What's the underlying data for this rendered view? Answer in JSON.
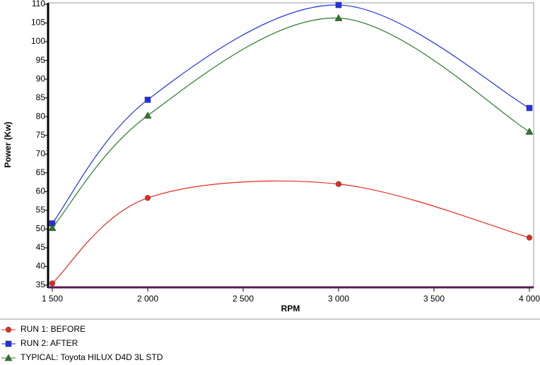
{
  "chart_data": {
    "type": "line",
    "x_label": "RPM",
    "y_label": "Power (Kw)",
    "x": [
      1500,
      2000,
      3000,
      4000
    ],
    "series": [
      {
        "name": "RUN 1: BEFORE",
        "color": "#e8291c",
        "marker": "circle",
        "values": [
          35.5,
          58.3,
          62,
          47.7
        ]
      },
      {
        "name": "RUN 2: AFTER",
        "color": "#1f2fe8",
        "marker": "square",
        "values": [
          51.5,
          84.5,
          109.8,
          82.3
        ]
      },
      {
        "name": "TYPICAL: Toyota HILUX D4D 3L STD",
        "color": "#2a7a2a",
        "marker": "triangle",
        "values": [
          50.3,
          80.3,
          106.3,
          76
        ]
      }
    ],
    "xlim": [
      1500,
      4000
    ],
    "xticks": [
      {
        "value": 1500,
        "label": "1 500"
      },
      {
        "value": 2000,
        "label": "2 000"
      },
      {
        "value": 2500,
        "label": "2 500"
      },
      {
        "value": 3000,
        "label": "3 000"
      },
      {
        "value": 3500,
        "label": "3 500"
      },
      {
        "value": 4000,
        "label": "4 000"
      }
    ],
    "ylim": [
      35,
      110
    ],
    "yticks": [
      35,
      40,
      45,
      50,
      55,
      60,
      65,
      70,
      75,
      80,
      85,
      90,
      95,
      100,
      105,
      110
    ]
  }
}
